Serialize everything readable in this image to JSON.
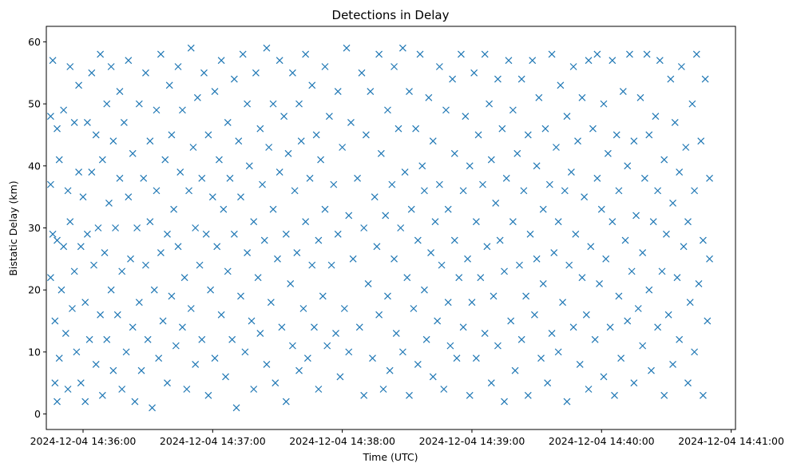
{
  "chart_data": {
    "type": "scatter",
    "title": "Detections in Delay",
    "xlabel": "Time (UTC)",
    "ylabel": "Bistatic Delay (km)",
    "marker": "x",
    "color": "#1f77b4",
    "grid": false,
    "x_unit": "seconds after 2024-12-04 14:36:00 UTC",
    "xlim_seconds": [
      -17,
      302
    ],
    "ylim": [
      -2.5,
      62.5
    ],
    "xticks": [
      {
        "value": 0,
        "label": "2024-12-04 14:36:00"
      },
      {
        "value": 60,
        "label": "2024-12-04 14:37:00"
      },
      {
        "value": 120,
        "label": "2024-12-04 14:38:00"
      },
      {
        "value": 180,
        "label": "2024-12-04 14:39:00"
      },
      {
        "value": 240,
        "label": "2024-12-04 14:40:00"
      },
      {
        "value": 300,
        "label": "2024-12-04 14:41:00"
      }
    ],
    "yticks": [
      0,
      10,
      20,
      30,
      40,
      50,
      60
    ],
    "points": [
      [
        -15,
        22
      ],
      [
        -15,
        37
      ],
      [
        -15,
        48
      ],
      [
        -14,
        57
      ],
      [
        -14,
        29
      ],
      [
        -13,
        15
      ],
      [
        -13,
        5
      ],
      [
        -12,
        46
      ],
      [
        -12,
        28
      ],
      [
        -12,
        2
      ],
      [
        -11,
        41
      ],
      [
        -11,
        9
      ],
      [
        -10,
        20
      ],
      [
        -9,
        49
      ],
      [
        -9,
        27
      ],
      [
        -8,
        13
      ],
      [
        -7,
        36
      ],
      [
        -7,
        4
      ],
      [
        -6,
        56
      ],
      [
        -6,
        31
      ],
      [
        -5,
        17
      ],
      [
        -4,
        47
      ],
      [
        -4,
        23
      ],
      [
        -3,
        10
      ],
      [
        -2,
        53
      ],
      [
        -2,
        39
      ],
      [
        -1,
        27
      ],
      [
        -1,
        5
      ],
      [
        0,
        35
      ],
      [
        1,
        18
      ],
      [
        1,
        2
      ],
      [
        2,
        47
      ],
      [
        2,
        29
      ],
      [
        3,
        12
      ],
      [
        4,
        55
      ],
      [
        4,
        39
      ],
      [
        5,
        24
      ],
      [
        6,
        8
      ],
      [
        6,
        45
      ],
      [
        7,
        30
      ],
      [
        8,
        16
      ],
      [
        8,
        58
      ],
      [
        9,
        41
      ],
      [
        9,
        3
      ],
      [
        10,
        26
      ],
      [
        11,
        50
      ],
      [
        11,
        12
      ],
      [
        12,
        34
      ],
      [
        13,
        20
      ],
      [
        13,
        56
      ],
      [
        14,
        44
      ],
      [
        14,
        7
      ],
      [
        15,
        30
      ],
      [
        16,
        16
      ],
      [
        17,
        52
      ],
      [
        17,
        38
      ],
      [
        18,
        23
      ],
      [
        18,
        4
      ],
      [
        19,
        47
      ],
      [
        20,
        10
      ],
      [
        21,
        35
      ],
      [
        21,
        57
      ],
      [
        22,
        25
      ],
      [
        23,
        14
      ],
      [
        23,
        42
      ],
      [
        24,
        2
      ],
      [
        25,
        30
      ],
      [
        26,
        50
      ],
      [
        26,
        18
      ],
      [
        27,
        7
      ],
      [
        28,
        38
      ],
      [
        29,
        55
      ],
      [
        29,
        24
      ],
      [
        30,
        12
      ],
      [
        31,
        44
      ],
      [
        31,
        31
      ],
      [
        32,
        1
      ],
      [
        33,
        20
      ],
      [
        34,
        49
      ],
      [
        34,
        36
      ],
      [
        35,
        9
      ],
      [
        36,
        26
      ],
      [
        36,
        58
      ],
      [
        37,
        15
      ],
      [
        38,
        41
      ],
      [
        39,
        29
      ],
      [
        39,
        5
      ],
      [
        40,
        53
      ],
      [
        41,
        19
      ],
      [
        41,
        45
      ],
      [
        42,
        33
      ],
      [
        43,
        11
      ],
      [
        44,
        56
      ],
      [
        44,
        27
      ],
      [
        45,
        39
      ],
      [
        46,
        14
      ],
      [
        46,
        49
      ],
      [
        47,
        22
      ],
      [
        48,
        4
      ],
      [
        49,
        36
      ],
      [
        50,
        59
      ],
      [
        50,
        17
      ],
      [
        51,
        43
      ],
      [
        52,
        30
      ],
      [
        52,
        8
      ],
      [
        53,
        51
      ],
      [
        54,
        24
      ],
      [
        55,
        38
      ],
      [
        55,
        12
      ],
      [
        56,
        55
      ],
      [
        57,
        29
      ],
      [
        58,
        45
      ],
      [
        58,
        3
      ],
      [
        59,
        20
      ],
      [
        60,
        35
      ],
      [
        61,
        52
      ],
      [
        61,
        9
      ],
      [
        62,
        27
      ],
      [
        63,
        41
      ],
      [
        64,
        16
      ],
      [
        64,
        57
      ],
      [
        65,
        33
      ],
      [
        66,
        6
      ],
      [
        67,
        47
      ],
      [
        67,
        23
      ],
      [
        68,
        38
      ],
      [
        69,
        12
      ],
      [
        70,
        54
      ],
      [
        70,
        29
      ],
      [
        71,
        1
      ],
      [
        72,
        44
      ],
      [
        73,
        19
      ],
      [
        73,
        35
      ],
      [
        74,
        58
      ],
      [
        75,
        10
      ],
      [
        76,
        26
      ],
      [
        76,
        50
      ],
      [
        77,
        40
      ],
      [
        78,
        15
      ],
      [
        79,
        31
      ],
      [
        79,
        4
      ],
      [
        80,
        55
      ],
      [
        81,
        22
      ],
      [
        82,
        46
      ],
      [
        82,
        13
      ],
      [
        83,
        37
      ],
      [
        84,
        28
      ],
      [
        85,
        59
      ],
      [
        85,
        8
      ],
      [
        86,
        43
      ],
      [
        87,
        18
      ],
      [
        88,
        33
      ],
      [
        88,
        50
      ],
      [
        89,
        5
      ],
      [
        90,
        25
      ],
      [
        91,
        57
      ],
      [
        91,
        39
      ],
      [
        92,
        14
      ],
      [
        93,
        48
      ],
      [
        94,
        29
      ],
      [
        94,
        2
      ],
      [
        95,
        42
      ],
      [
        96,
        21
      ],
      [
        97,
        55
      ],
      [
        97,
        11
      ],
      [
        98,
        36
      ],
      [
        99,
        26
      ],
      [
        100,
        50
      ],
      [
        100,
        7
      ],
      [
        101,
        44
      ],
      [
        102,
        17
      ],
      [
        103,
        31
      ],
      [
        103,
        58
      ],
      [
        104,
        9
      ],
      [
        105,
        38
      ],
      [
        106,
        24
      ],
      [
        106,
        53
      ],
      [
        107,
        14
      ],
      [
        108,
        45
      ],
      [
        109,
        28
      ],
      [
        109,
        4
      ],
      [
        110,
        41
      ],
      [
        111,
        19
      ],
      [
        112,
        56
      ],
      [
        112,
        33
      ],
      [
        113,
        11
      ],
      [
        114,
        48
      ],
      [
        115,
        24
      ],
      [
        116,
        37
      ],
      [
        117,
        13
      ],
      [
        118,
        52
      ],
      [
        118,
        29
      ],
      [
        119,
        6
      ],
      [
        120,
        43
      ],
      [
        121,
        17
      ],
      [
        122,
        59
      ],
      [
        123,
        32
      ],
      [
        123,
        10
      ],
      [
        124,
        47
      ],
      [
        125,
        25
      ],
      [
        127,
        38
      ],
      [
        128,
        14
      ],
      [
        129,
        55
      ],
      [
        130,
        30
      ],
      [
        130,
        3
      ],
      [
        131,
        45
      ],
      [
        132,
        21
      ],
      [
        133,
        52
      ],
      [
        134,
        9
      ],
      [
        135,
        35
      ],
      [
        136,
        27
      ],
      [
        137,
        58
      ],
      [
        137,
        16
      ],
      [
        138,
        42
      ],
      [
        139,
        4
      ],
      [
        140,
        32
      ],
      [
        141,
        49
      ],
      [
        141,
        19
      ],
      [
        142,
        7
      ],
      [
        143,
        37
      ],
      [
        144,
        56
      ],
      [
        144,
        25
      ],
      [
        145,
        13
      ],
      [
        146,
        46
      ],
      [
        147,
        30
      ],
      [
        148,
        59
      ],
      [
        148,
        10
      ],
      [
        149,
        39
      ],
      [
        150,
        22
      ],
      [
        151,
        52
      ],
      [
        151,
        3
      ],
      [
        152,
        33
      ],
      [
        153,
        17
      ],
      [
        154,
        46
      ],
      [
        155,
        28
      ],
      [
        155,
        8
      ],
      [
        156,
        58
      ],
      [
        157,
        40
      ],
      [
        158,
        20
      ],
      [
        158,
        36
      ],
      [
        159,
        12
      ],
      [
        160,
        51
      ],
      [
        161,
        26
      ],
      [
        162,
        6
      ],
      [
        162,
        44
      ],
      [
        163,
        31
      ],
      [
        164,
        15
      ],
      [
        165,
        56
      ],
      [
        165,
        37
      ],
      [
        166,
        24
      ],
      [
        167,
        4
      ],
      [
        168,
        49
      ],
      [
        169,
        18
      ],
      [
        169,
        33
      ],
      [
        170,
        11
      ],
      [
        171,
        54
      ],
      [
        172,
        28
      ],
      [
        172,
        42
      ],
      [
        173,
        9
      ],
      [
        174,
        22
      ],
      [
        175,
        58
      ],
      [
        176,
        36
      ],
      [
        176,
        14
      ],
      [
        177,
        48
      ],
      [
        178,
        25
      ],
      [
        179,
        3
      ],
      [
        179,
        40
      ],
      [
        180,
        18
      ],
      [
        181,
        55
      ],
      [
        182,
        31
      ],
      [
        182,
        9
      ],
      [
        183,
        45
      ],
      [
        184,
        22
      ],
      [
        185,
        37
      ],
      [
        186,
        13
      ],
      [
        186,
        58
      ],
      [
        187,
        27
      ],
      [
        188,
        50
      ],
      [
        189,
        5
      ],
      [
        189,
        41
      ],
      [
        190,
        19
      ],
      [
        191,
        34
      ],
      [
        192,
        54
      ],
      [
        192,
        11
      ],
      [
        193,
        28
      ],
      [
        194,
        46
      ],
      [
        195,
        2
      ],
      [
        195,
        23
      ],
      [
        196,
        38
      ],
      [
        197,
        57
      ],
      [
        198,
        15
      ],
      [
        199,
        31
      ],
      [
        199,
        49
      ],
      [
        200,
        7
      ],
      [
        201,
        42
      ],
      [
        202,
        24
      ],
      [
        203,
        54
      ],
      [
        203,
        12
      ],
      [
        204,
        36
      ],
      [
        205,
        19
      ],
      [
        206,
        45
      ],
      [
        206,
        3
      ],
      [
        207,
        29
      ],
      [
        208,
        57
      ],
      [
        209,
        16
      ],
      [
        210,
        40
      ],
      [
        210,
        25
      ],
      [
        211,
        51
      ],
      [
        212,
        9
      ],
      [
        213,
        33
      ],
      [
        213,
        21
      ],
      [
        214,
        46
      ],
      [
        215,
        5
      ],
      [
        216,
        37
      ],
      [
        217,
        13
      ],
      [
        217,
        58
      ],
      [
        218,
        26
      ],
      [
        219,
        43
      ],
      [
        220,
        31
      ],
      [
        220,
        10
      ],
      [
        221,
        53
      ],
      [
        222,
        18
      ],
      [
        223,
        36
      ],
      [
        224,
        48
      ],
      [
        224,
        2
      ],
      [
        225,
        24
      ],
      [
        226,
        39
      ],
      [
        227,
        14
      ],
      [
        227,
        56
      ],
      [
        228,
        29
      ],
      [
        229,
        44
      ],
      [
        230,
        8
      ],
      [
        231,
        22
      ],
      [
        231,
        51
      ],
      [
        232,
        35
      ],
      [
        233,
        16
      ],
      [
        234,
        57
      ],
      [
        234,
        4
      ],
      [
        235,
        27
      ],
      [
        236,
        46
      ],
      [
        237,
        12
      ],
      [
        238,
        38
      ],
      [
        238,
        58
      ],
      [
        239,
        21
      ],
      [
        240,
        33
      ],
      [
        241,
        6
      ],
      [
        241,
        50
      ],
      [
        242,
        25
      ],
      [
        243,
        42
      ],
      [
        244,
        14
      ],
      [
        245,
        57
      ],
      [
        245,
        31
      ],
      [
        246,
        3
      ],
      [
        247,
        45
      ],
      [
        248,
        19
      ],
      [
        248,
        36
      ],
      [
        249,
        9
      ],
      [
        250,
        52
      ],
      [
        251,
        28
      ],
      [
        252,
        40
      ],
      [
        252,
        15
      ],
      [
        253,
        58
      ],
      [
        254,
        23
      ],
      [
        255,
        5
      ],
      [
        255,
        44
      ],
      [
        256,
        32
      ],
      [
        257,
        17
      ],
      [
        258,
        51
      ],
      [
        259,
        26
      ],
      [
        259,
        11
      ],
      [
        260,
        38
      ],
      [
        261,
        58
      ],
      [
        262,
        20
      ],
      [
        262,
        45
      ],
      [
        263,
        7
      ],
      [
        264,
        31
      ],
      [
        265,
        48
      ],
      [
        266,
        14
      ],
      [
        266,
        36
      ],
      [
        267,
        57
      ],
      [
        268,
        23
      ],
      [
        269,
        3
      ],
      [
        269,
        41
      ],
      [
        270,
        29
      ],
      [
        271,
        16
      ],
      [
        272,
        54
      ],
      [
        273,
        34
      ],
      [
        273,
        8
      ],
      [
        274,
        47
      ],
      [
        275,
        22
      ],
      [
        276,
        39
      ],
      [
        276,
        12
      ],
      [
        277,
        56
      ],
      [
        278,
        27
      ],
      [
        279,
        43
      ],
      [
        280,
        5
      ],
      [
        280,
        31
      ],
      [
        281,
        18
      ],
      [
        282,
        50
      ],
      [
        283,
        36
      ],
      [
        283,
        10
      ],
      [
        284,
        58
      ],
      [
        285,
        21
      ],
      [
        286,
        44
      ],
      [
        287,
        28
      ],
      [
        287,
        3
      ],
      [
        288,
        54
      ],
      [
        289,
        15
      ],
      [
        290,
        38
      ],
      [
        290,
        25
      ]
    ]
  }
}
